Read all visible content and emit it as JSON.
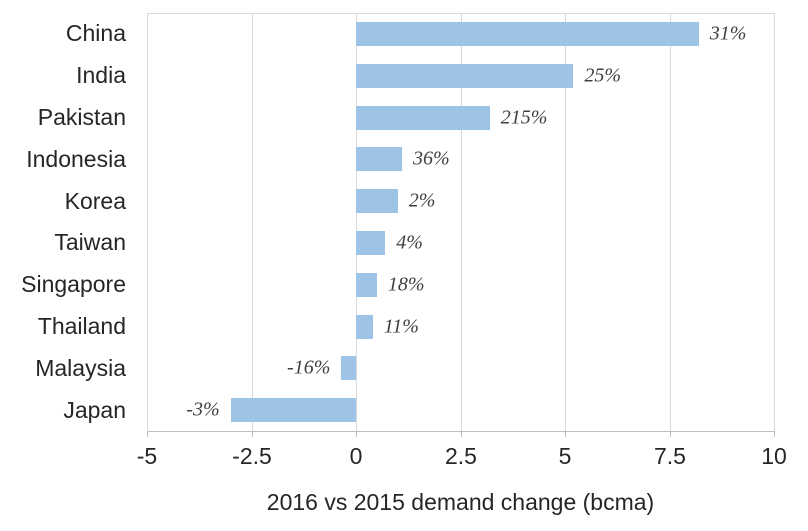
{
  "chart_data": {
    "type": "bar",
    "orientation": "horizontal",
    "title": "",
    "categories": [
      "China",
      "India",
      "Pakistan",
      "Indonesia",
      "Korea",
      "Taiwan",
      "Singapore",
      "Thailand",
      "Malaysia",
      "Japan"
    ],
    "values": [
      8.2,
      5.2,
      3.2,
      1.1,
      1.0,
      0.7,
      0.5,
      0.4,
      -0.35,
      -3.0
    ],
    "value_labels": [
      "31%",
      "25%",
      "215%",
      "36%",
      "2%",
      "4%",
      "18%",
      "11%",
      "-16%",
      "-3%"
    ],
    "xlabel": "2016 vs 2015 demand change (bcma)",
    "ylabel": "",
    "xlim": [
      -5,
      10
    ],
    "xticks": [
      -5,
      -2.5,
      0,
      2.5,
      5,
      7.5,
      10
    ],
    "xtick_labels": [
      "-5",
      "-2.5",
      "0",
      "2.5",
      "5",
      "7.5",
      "10"
    ],
    "grid": true,
    "legend": false,
    "colors": {
      "bar": "#9dc3e6",
      "gridline": "#d9d9d9",
      "axis": "#bfbfbf",
      "text": "#262626",
      "value_label_text": "#404040"
    }
  }
}
